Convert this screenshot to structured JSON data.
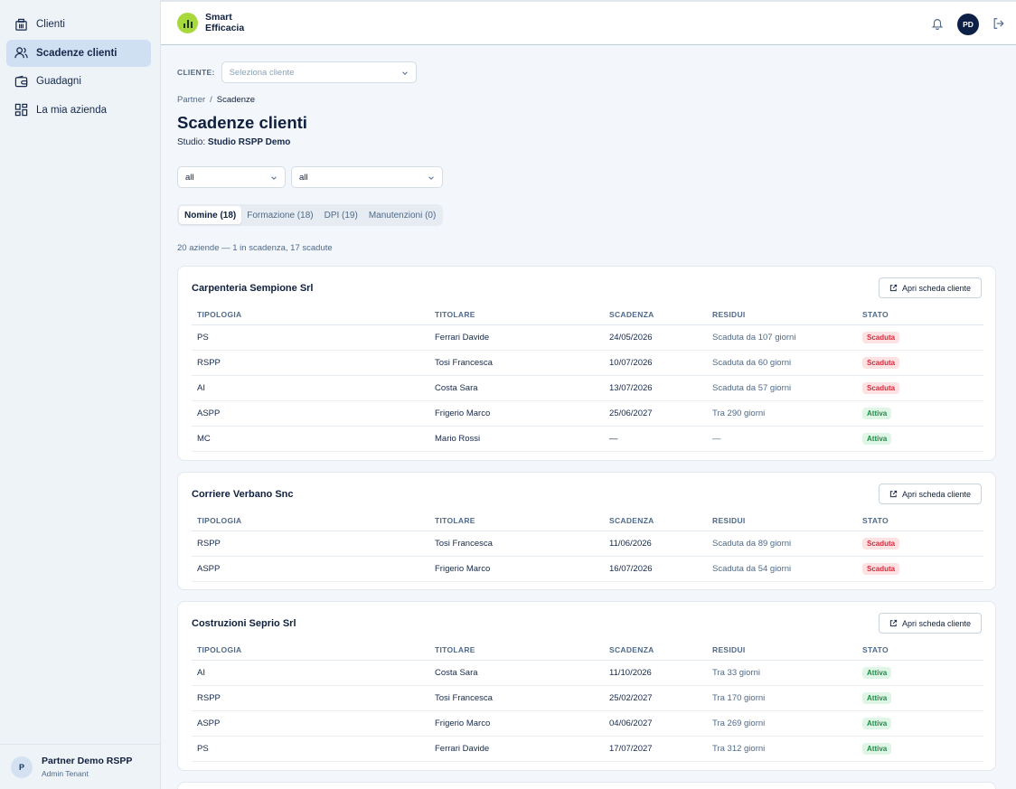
{
  "sidebar": {
    "items": [
      {
        "label": "Clienti",
        "icon": "building-icon"
      },
      {
        "label": "Scadenze clienti",
        "icon": "users-icon"
      },
      {
        "label": "Guadagni",
        "icon": "wallet-icon"
      },
      {
        "label": "La mia azienda",
        "icon": "grid-icon"
      }
    ],
    "footer": {
      "initial": "P",
      "name": "Partner Demo RSPP",
      "role": "Admin Tenant"
    }
  },
  "header": {
    "logo_line1": "Smart",
    "logo_line2": "Efficacia",
    "user_initials": "PD"
  },
  "main": {
    "client_label": "CLIENTE:",
    "client_placeholder": "Seleziona cliente",
    "breadcrumb": {
      "parent": "Partner",
      "separator": "/",
      "current": "Scadenze"
    },
    "title": "Scadenze clienti",
    "studio_label": "Studio:",
    "studio_name": "Studio RSPP Demo",
    "filter1": "all",
    "filter2": "all",
    "tabs": [
      "Nomine (18)",
      "Formazione (18)",
      "DPI (19)",
      "Manutenzioni (0)"
    ],
    "summary": "20 aziende — 1 in scadenza, 17 scadute",
    "open_button": "Apri scheda cliente",
    "columns": [
      "TIPOLOGIA",
      "TITOLARE",
      "SCADENZA",
      "RESIDUI",
      "STATO"
    ]
  },
  "colors": {
    "accent": "#a8d93c",
    "scaduta": "#d42a3c",
    "attiva": "#1e8a47"
  },
  "companies": [
    {
      "name": "Carpenteria Sempione Srl",
      "rows": [
        {
          "tipologia": "PS",
          "titolare": "Ferrari Davide",
          "scadenza": "24/05/2026",
          "residui": "Scaduta da 107 giorni",
          "stato": "Scaduta"
        },
        {
          "tipologia": "RSPP",
          "titolare": "Tosi Francesca",
          "scadenza": "10/07/2026",
          "residui": "Scaduta da 60 giorni",
          "stato": "Scaduta"
        },
        {
          "tipologia": "AI",
          "titolare": "Costa Sara",
          "scadenza": "13/07/2026",
          "residui": "Scaduta da 57 giorni",
          "stato": "Scaduta"
        },
        {
          "tipologia": "ASPP",
          "titolare": "Frigerio Marco",
          "scadenza": "25/06/2027",
          "residui": "Tra 290 giorni",
          "stato": "Attiva"
        },
        {
          "tipologia": "MC",
          "titolare": "Mario Rossi",
          "scadenza": "—",
          "residui": "—",
          "stato": "Attiva"
        }
      ]
    },
    {
      "name": "Corriere Verbano Snc",
      "rows": [
        {
          "tipologia": "RSPP",
          "titolare": "Tosi Francesca",
          "scadenza": "11/06/2026",
          "residui": "Scaduta da 89 giorni",
          "stato": "Scaduta"
        },
        {
          "tipologia": "ASPP",
          "titolare": "Frigerio Marco",
          "scadenza": "16/07/2026",
          "residui": "Scaduta da 54 giorni",
          "stato": "Scaduta"
        }
      ]
    },
    {
      "name": "Costruzioni Seprio Srl",
      "rows": [
        {
          "tipologia": "AI",
          "titolare": "Costa Sara",
          "scadenza": "11/10/2026",
          "residui": "Tra 33 giorni",
          "stato": "Attiva"
        },
        {
          "tipologia": "RSPP",
          "titolare": "Tosi Francesca",
          "scadenza": "25/02/2027",
          "residui": "Tra 170 giorni",
          "stato": "Attiva"
        },
        {
          "tipologia": "ASPP",
          "titolare": "Frigerio Marco",
          "scadenza": "04/06/2027",
          "residui": "Tra 269 giorni",
          "stato": "Attiva"
        },
        {
          "tipologia": "PS",
          "titolare": "Ferrari Davide",
          "scadenza": "17/07/2027",
          "residui": "Tra 312 giorni",
          "stato": "Attiva"
        }
      ]
    }
  ]
}
